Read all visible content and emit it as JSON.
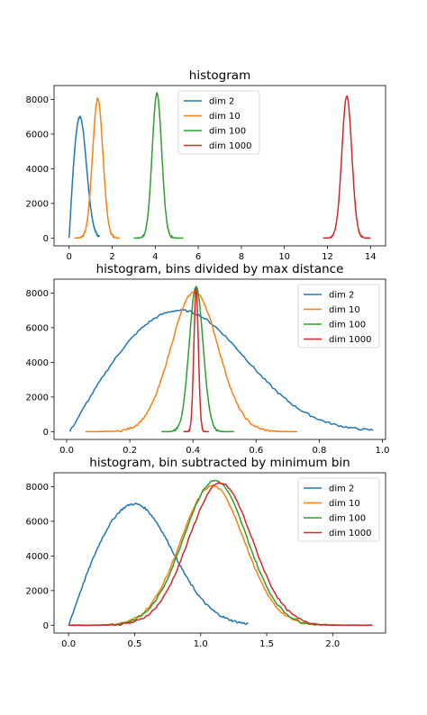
{
  "chart_data": [
    {
      "type": "line",
      "title": "histogram",
      "xlabel": "",
      "ylabel": "",
      "xlim": [
        -0.7,
        14.7
      ],
      "ylim": [
        -450,
        8800
      ],
      "xticks": [
        0,
        2,
        4,
        6,
        8,
        10,
        12,
        14
      ],
      "xtick_labels": [
        "0",
        "2",
        "4",
        "6",
        "8",
        "10",
        "12",
        "14"
      ],
      "yticks": [
        0,
        2000,
        4000,
        6000,
        8000
      ],
      "ytick_labels": [
        "0",
        "2000",
        "4000",
        "6000",
        "8000"
      ],
      "grid": false,
      "legend_position": "upper-center",
      "series": [
        {
          "name": "dim 2",
          "color": "#1f77b4",
          "shape": "skew",
          "min": 0.0,
          "peak": 0.5,
          "max": 1.4,
          "height": 7000
        },
        {
          "name": "dim 10",
          "color": "#ff7f0e",
          "shape": "gauss",
          "center": 1.33,
          "sigma": 0.24,
          "min": 0.25,
          "max": 2.35,
          "height": 8050
        },
        {
          "name": "dim 100",
          "color": "#2ca02c",
          "shape": "gauss",
          "center": 4.08,
          "sigma": 0.22,
          "min": 3.0,
          "max": 5.3,
          "height": 8350
        },
        {
          "name": "dim 1000",
          "color": "#d62728",
          "shape": "gauss",
          "center": 12.9,
          "sigma": 0.23,
          "min": 11.8,
          "max": 14.0,
          "height": 8200
        }
      ]
    },
    {
      "type": "line",
      "title": "histogram, bins divided by max distance",
      "xlabel": "",
      "ylabel": "",
      "xlim": [
        -0.04,
        1.01
      ],
      "ylim": [
        -450,
        8800
      ],
      "xticks": [
        0.0,
        0.2,
        0.4,
        0.6,
        0.8,
        1.0
      ],
      "xtick_labels": [
        "0.0",
        "0.2",
        "0.4",
        "0.6",
        "0.8",
        "1.0"
      ],
      "yticks": [
        0,
        2000,
        4000,
        6000,
        8000
      ],
      "ytick_labels": [
        "0",
        "2000",
        "4000",
        "6000",
        "8000"
      ],
      "grid": false,
      "legend_position": "upper-right",
      "series": [
        {
          "name": "dim 2",
          "color": "#1f77b4",
          "shape": "skew",
          "min": 0.01,
          "peak": 0.36,
          "max": 0.97,
          "height": 7000
        },
        {
          "name": "dim 10",
          "color": "#ff7f0e",
          "shape": "gauss",
          "center": 0.405,
          "sigma": 0.075,
          "min": 0.06,
          "max": 0.73,
          "height": 8050
        },
        {
          "name": "dim 100",
          "color": "#2ca02c",
          "shape": "gauss",
          "center": 0.41,
          "sigma": 0.022,
          "min": 0.3,
          "max": 0.53,
          "height": 8350
        },
        {
          "name": "dim 1000",
          "color": "#d62728",
          "shape": "gauss",
          "center": 0.41,
          "sigma": 0.0072,
          "min": 0.37,
          "max": 0.45,
          "height": 8200
        }
      ]
    },
    {
      "type": "line",
      "title": "histogram, bin subtracted by minimum bin",
      "xlabel": "",
      "ylabel": "",
      "xlim": [
        -0.11,
        2.4
      ],
      "ylim": [
        -450,
        8800
      ],
      "xticks": [
        0.0,
        0.5,
        1.0,
        1.5,
        2.0
      ],
      "xtick_labels": [
        "0.0",
        "0.5",
        "1.0",
        "1.5",
        "2.0"
      ],
      "yticks": [
        0,
        2000,
        4000,
        6000,
        8000
      ],
      "ytick_labels": [
        "0",
        "2000",
        "4000",
        "6000",
        "8000"
      ],
      "grid": false,
      "legend_position": "upper-right",
      "series": [
        {
          "name": "dim 2",
          "color": "#1f77b4",
          "shape": "skew",
          "min": 0.0,
          "peak": 0.5,
          "max": 1.36,
          "height": 7000
        },
        {
          "name": "dim 10",
          "color": "#ff7f0e",
          "shape": "gauss",
          "center": 1.09,
          "sigma": 0.24,
          "min": 0.0,
          "max": 2.3,
          "height": 8050
        },
        {
          "name": "dim 100",
          "color": "#2ca02c",
          "shape": "gauss",
          "center": 1.11,
          "sigma": 0.24,
          "min": 0.0,
          "max": 2.3,
          "height": 8350
        },
        {
          "name": "dim 1000",
          "color": "#d62728",
          "shape": "gauss",
          "center": 1.15,
          "sigma": 0.24,
          "min": 0.0,
          "max": 2.3,
          "height": 8200
        }
      ]
    }
  ]
}
